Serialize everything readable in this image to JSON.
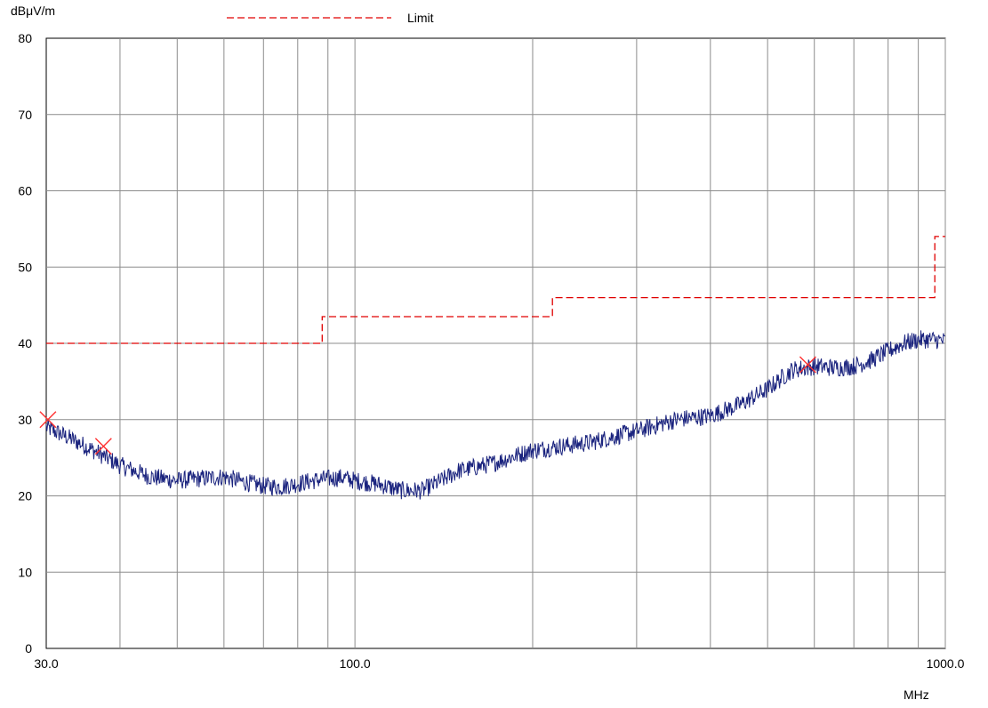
{
  "chart_data": {
    "type": "line",
    "y_unit_label": "dBμV/m",
    "x_unit_label": "MHz",
    "x_scale": "log",
    "xlim": [
      30,
      1000
    ],
    "ylim": [
      0,
      80
    ],
    "grid": true,
    "legend_position": "top",
    "x_tick_labels": [
      {
        "value": 30,
        "label": "30.0"
      },
      {
        "value": 100,
        "label": "100.0"
      },
      {
        "value": 1000,
        "label": "1000.0"
      }
    ],
    "x_gridlines": [
      40,
      50,
      60,
      70,
      80,
      90,
      100,
      200,
      300,
      400,
      500,
      600,
      700,
      800,
      900,
      1000
    ],
    "y_ticks": [
      0,
      10,
      20,
      30,
      40,
      50,
      60,
      70,
      80
    ],
    "series": [
      {
        "name": "Limit",
        "color": "#e00000",
        "style": "dashed",
        "step_points": [
          [
            30,
            40
          ],
          [
            88,
            40
          ],
          [
            88,
            43.5
          ],
          [
            216,
            43.5
          ],
          [
            216,
            46
          ],
          [
            960,
            46
          ],
          [
            960,
            54
          ],
          [
            1000,
            54
          ]
        ]
      },
      {
        "color": "#1a237e",
        "style": "solid",
        "noise_amplitude_db": 1.2,
        "points": [
          [
            30,
            29
          ],
          [
            33,
            27.5
          ],
          [
            36,
            26
          ],
          [
            40,
            24
          ],
          [
            45,
            22.5
          ],
          [
            50,
            22
          ],
          [
            55,
            22.3
          ],
          [
            60,
            22.5
          ],
          [
            65,
            21.8
          ],
          [
            70,
            21.3
          ],
          [
            75,
            21.2
          ],
          [
            80,
            21.6
          ],
          [
            88,
            22.2
          ],
          [
            95,
            22.4
          ],
          [
            100,
            22
          ],
          [
            110,
            21.5
          ],
          [
            120,
            20.7
          ],
          [
            130,
            20.7
          ],
          [
            140,
            22
          ],
          [
            150,
            23.3
          ],
          [
            170,
            24.2
          ],
          [
            200,
            26
          ],
          [
            250,
            27
          ],
          [
            300,
            28.5
          ],
          [
            350,
            30
          ],
          [
            400,
            30.5
          ],
          [
            450,
            32
          ],
          [
            500,
            34
          ],
          [
            550,
            36.5
          ],
          [
            600,
            37
          ],
          [
            650,
            36.8
          ],
          [
            700,
            37
          ],
          [
            750,
            37.8
          ],
          [
            800,
            39
          ],
          [
            850,
            40
          ],
          [
            900,
            40.5
          ],
          [
            950,
            40.5
          ],
          [
            1000,
            40.3
          ]
        ]
      },
      {
        "markers": "x",
        "color": "#ff3030",
        "points": [
          [
            30.2,
            30
          ],
          [
            37.5,
            26.5
          ],
          [
            585,
            37.2
          ]
        ]
      }
    ]
  }
}
